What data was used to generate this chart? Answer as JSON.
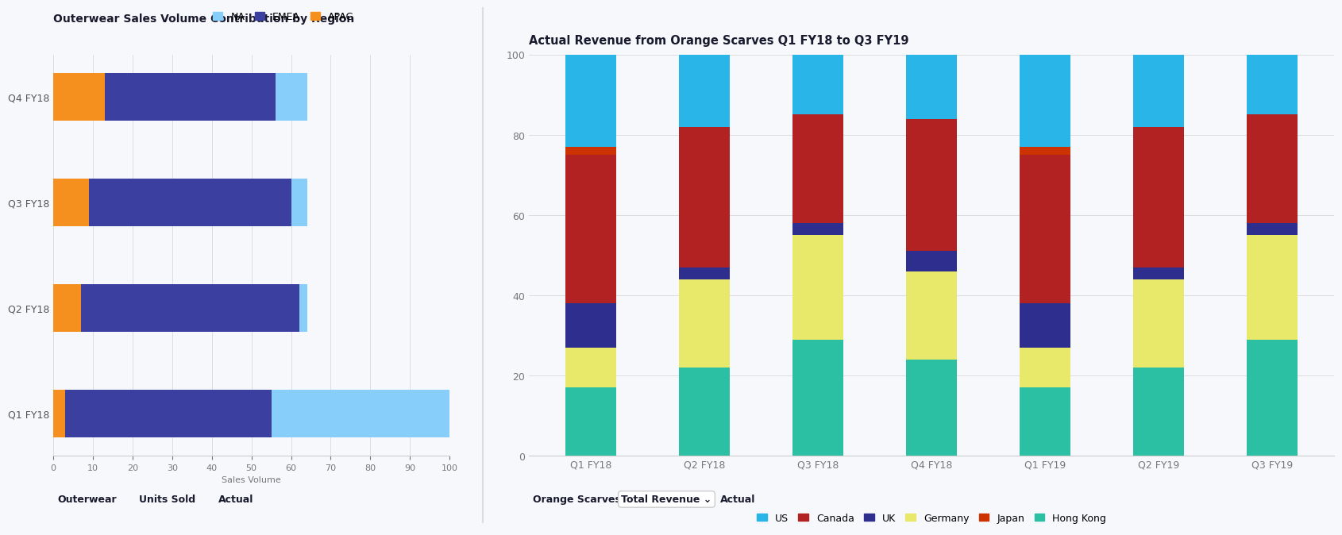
{
  "left": {
    "title": "Outerwear Sales Volume Contribution by Region",
    "xlabel": "Sales Volume",
    "xlim": [
      0,
      100
    ],
    "xticks": [
      0,
      10,
      20,
      30,
      40,
      50,
      60,
      70,
      80,
      90,
      100
    ],
    "categories": [
      "Q1 FY18",
      "Q2 FY18",
      "Q3 FY18",
      "Q4 FY18"
    ],
    "series": {
      "APAC": [
        3,
        7,
        9,
        13
      ],
      "EMEA": [
        52,
        55,
        51,
        43
      ],
      "NA": [
        45,
        2,
        4,
        8
      ]
    },
    "colors": {
      "APAC": "#F5901E",
      "EMEA": "#3B3FA0",
      "NA": "#87CEFA"
    },
    "legend_order": [
      "NA",
      "EMEA",
      "APAC"
    ],
    "footer": [
      "Outerwear",
      "Units Sold",
      "Actual"
    ],
    "bg_color": "#f7f8fc"
  },
  "right": {
    "title": "Actual Revenue from Orange Scarves Q1 FY18 to Q3 FY19",
    "ylabel": "",
    "ylim": [
      0,
      100
    ],
    "yticks": [
      0,
      20,
      40,
      60,
      80,
      100
    ],
    "categories": [
      "Q1 FY18",
      "Q2 FY18",
      "Q3 FY18",
      "Q4 FY18",
      "Q1 FY19",
      "Q2 FY19",
      "Q3 FY19"
    ],
    "series": {
      "Hong Kong": [
        17,
        22,
        29,
        24,
        17,
        22,
        29
      ],
      "Germany": [
        10,
        22,
        26,
        22,
        10,
        22,
        26
      ],
      "UK": [
        11,
        3,
        3,
        5,
        11,
        3,
        3
      ],
      "Canada": [
        37,
        35,
        27,
        33,
        37,
        35,
        27
      ],
      "Japan": [
        2,
        0,
        0,
        0,
        2,
        0,
        0
      ],
      "US": [
        23,
        18,
        15,
        16,
        23,
        18,
        15
      ]
    },
    "colors": {
      "Hong Kong": "#2bbfa4",
      "Germany": "#e8e86a",
      "UK": "#2e2e8f",
      "Canada": "#b22222",
      "Japan": "#cc3300",
      "US": "#29b5e8"
    },
    "legend_order": [
      "US",
      "Canada",
      "UK",
      "Germany",
      "Japan",
      "Hong Kong"
    ],
    "footer": [
      "Orange Scarves",
      "Total Revenue",
      "Actual"
    ],
    "bg_color": "#f7f8fc"
  }
}
